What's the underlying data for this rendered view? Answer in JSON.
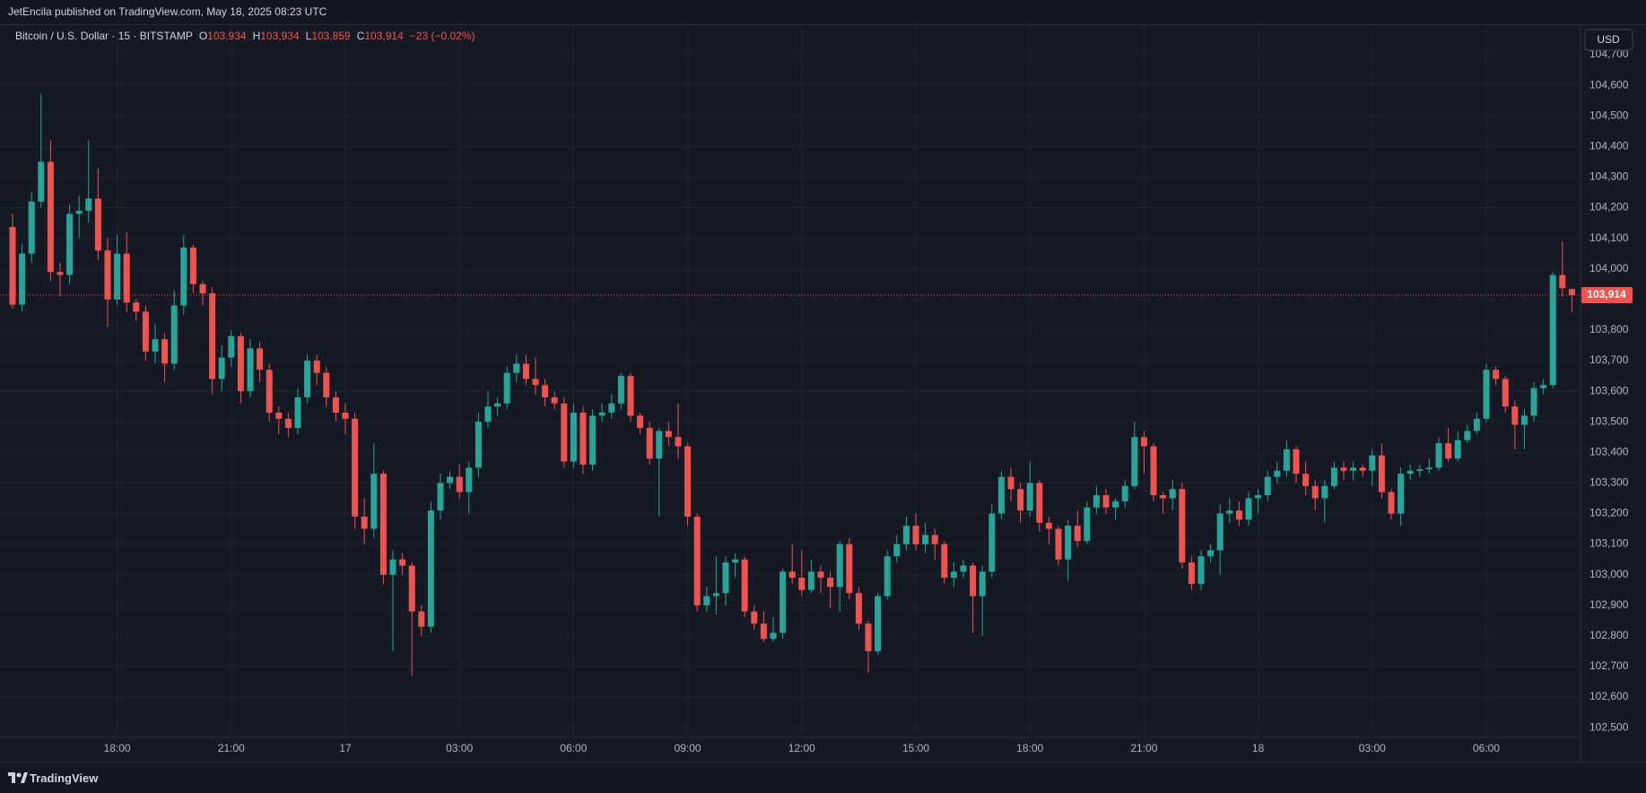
{
  "header": {
    "publisher": "JetEncila published on TradingView.com, May 18, 2025 08:23 UTC"
  },
  "footer": {
    "brand": "TradingView"
  },
  "chart_data": {
    "type": "candlestick",
    "symbol": "Bitcoin / U.S. Dollar · 15 · BITSTAMP",
    "ohlc_legend": [
      {
        "label": "O",
        "text": "103,934"
      },
      {
        "label": "H",
        "text": "103,934"
      },
      {
        "label": "L",
        "text": "103,859"
      },
      {
        "label": "C",
        "text": "103,914"
      }
    ],
    "change": "−23 (−0.02%)",
    "currency": "USD",
    "up_color": "#26a69a",
    "down_color": "#ef5350",
    "grid": true,
    "open": [
      104137,
      103883,
      104050,
      104220,
      104350,
      103990,
      103980,
      104180,
      104190,
      104230,
      104060,
      103900,
      104050,
      103890,
      103860,
      103730,
      103770,
      103690,
      103880,
      104070,
      103950,
      103920,
      103640,
      103710,
      103780,
      103600,
      103740,
      103670,
      103530,
      103510,
      103480,
      103580,
      103700,
      103660,
      103580,
      103530,
      103510,
      103190,
      103150,
      103330,
      103000,
      103050,
      103030,
      102880,
      102830,
      103210,
      103300,
      103320,
      103270,
      103350,
      103500,
      103550,
      103560,
      103660,
      103690,
      103640,
      103620,
      103580,
      103560,
      103370,
      103530,
      103360,
      103520,
      103530,
      103560,
      103650,
      103520,
      103480,
      103380,
      103470,
      103450,
      103420,
      103190,
      102900,
      102930,
      102940,
      103040,
      103050,
      102880,
      102840,
      102790,
      102810,
      103010,
      102990,
      102950,
      103010,
      102990,
      102960,
      103100,
      102940,
      102840,
      102750,
      102930,
      103060,
      103100,
      103160,
      103100,
      103130,
      103100,
      102990,
      103010,
      103030,
      102930,
      103010,
      103200,
      103320,
      103280,
      103210,
      103300,
      103170,
      103150,
      103050,
      103160,
      103110,
      103220,
      103260,
      103220,
      103240,
      103290,
      103450,
      103420,
      103260,
      103250,
      103280,
      103040,
      102970,
      103060,
      103080,
      103200,
      103210,
      103180,
      103250,
      103260,
      103320,
      103340,
      103410,
      103330,
      103290,
      103250,
      103290,
      103350,
      103340,
      103350,
      103340,
      103390,
      103270,
      103200,
      103330,
      103340,
      103345,
      103350,
      103430,
      103380,
      103440,
      103470,
      103510,
      103670,
      103640,
      103550,
      103490,
      103520,
      103610,
      103620,
      103980,
      103934
    ],
    "high": [
      104180,
      104080,
      104250,
      104570,
      104420,
      104020,
      104210,
      104240,
      104420,
      104330,
      104100,
      104110,
      104120,
      103900,
      103880,
      103820,
      103790,
      103930,
      104110,
      104080,
      103960,
      103940,
      103750,
      103800,
      103790,
      103770,
      103760,
      103690,
      103550,
      103530,
      103610,
      103720,
      103720,
      103680,
      103600,
      103560,
      103530,
      103250,
      103430,
      103340,
      103080,
      103070,
      103040,
      102900,
      103240,
      103330,
      103340,
      103360,
      103370,
      103530,
      103600,
      103580,
      103680,
      103720,
      103720,
      103710,
      103640,
      103600,
      103580,
      103560,
      103550,
      103540,
      103560,
      103590,
      103660,
      103660,
      103530,
      103500,
      103480,
      103500,
      103560,
      103430,
      103200,
      102960,
      103060,
      103060,
      103070,
      103060,
      102900,
      102880,
      102860,
      103020,
      103100,
      103080,
      103050,
      103030,
      103010,
      103110,
      103120,
      102960,
      102850,
      102940,
      103080,
      103130,
      103190,
      103200,
      103170,
      103150,
      103110,
      103040,
      103050,
      103040,
      103030,
      103230,
      103340,
      103350,
      103300,
      103370,
      103310,
      103190,
      103160,
      103180,
      103210,
      103240,
      103290,
      103280,
      103250,
      103310,
      103500,
      103470,
      103430,
      103270,
      103310,
      103300,
      103060,
      103080,
      103100,
      103230,
      103250,
      103240,
      103270,
      103280,
      103340,
      103370,
      103440,
      103420,
      103370,
      103310,
      103310,
      103370,
      103370,
      103370,
      103360,
      103410,
      103430,
      103280,
      103350,
      103360,
      103360,
      103380,
      103450,
      103480,
      103470,
      103490,
      103530,
      103690,
      103680,
      103650,
      103570,
      103540,
      103630,
      103640,
      103990,
      104090,
      103934
    ],
    "low": [
      103870,
      103860,
      104020,
      104200,
      103960,
      103910,
      103950,
      104100,
      104150,
      104030,
      103810,
      103880,
      103860,
      103830,
      103700,
      103690,
      103630,
      103670,
      103850,
      103920,
      103880,
      103590,
      103600,
      103680,
      103560,
      103580,
      103630,
      103500,
      103460,
      103450,
      103460,
      103560,
      103620,
      103550,
      103500,
      103460,
      103150,
      103100,
      103120,
      102970,
      102750,
      103000,
      102670,
      102800,
      102810,
      103180,
      103280,
      103250,
      103200,
      103320,
      103480,
      103520,
      103540,
      103630,
      103620,
      103590,
      103550,
      103540,
      103350,
      103350,
      103330,
      103340,
      103500,
      103510,
      103540,
      103500,
      103460,
      103360,
      103190,
      103420,
      103380,
      103160,
      102880,
      102880,
      102870,
      102900,
      102990,
      102860,
      102820,
      102780,
      102780,
      102790,
      102970,
      102930,
      102940,
      102940,
      102890,
      102880,
      102920,
      102820,
      102680,
      102740,
      102920,
      103040,
      103080,
      103080,
      103070,
      103050,
      102970,
      102960,
      102990,
      102810,
      102800,
      102990,
      103180,
      103240,
      103170,
      103190,
      103140,
      103100,
      103030,
      102980,
      103090,
      103100,
      103200,
      103200,
      103180,
      103220,
      103280,
      103330,
      103240,
      103200,
      103210,
      103020,
      102950,
      102950,
      103040,
      103000,
      103170,
      103160,
      103160,
      103200,
      103240,
      103300,
      103320,
      103300,
      103260,
      103210,
      103170,
      103280,
      103310,
      103310,
      103320,
      103290,
      103250,
      103180,
      103160,
      103310,
      103320,
      103330,
      103340,
      103370,
      103370,
      103430,
      103460,
      103500,
      103620,
      103530,
      103410,
      103410,
      103500,
      103590,
      103610,
      103910,
      103859
    ],
    "close": [
      103883,
      104050,
      104220,
      104350,
      103990,
      103980,
      104180,
      104190,
      104230,
      104060,
      103900,
      104050,
      103890,
      103860,
      103730,
      103770,
      103690,
      103880,
      104070,
      103950,
      103920,
      103640,
      103710,
      103780,
      103600,
      103740,
      103670,
      103530,
      103510,
      103480,
      103580,
      103700,
      103660,
      103580,
      103530,
      103510,
      103190,
      103150,
      103330,
      103000,
      103050,
      103030,
      102880,
      102830,
      103210,
      103300,
      103320,
      103270,
      103350,
      103500,
      103550,
      103560,
      103660,
      103690,
      103640,
      103620,
      103580,
      103560,
      103370,
      103530,
      103360,
      103520,
      103530,
      103560,
      103650,
      103520,
      103480,
      103380,
      103470,
      103450,
      103420,
      103190,
      102900,
      102930,
      102940,
      103040,
      103050,
      102880,
      102840,
      102790,
      102810,
      103010,
      102990,
      102950,
      103010,
      102990,
      102960,
      103100,
      102940,
      102840,
      102750,
      102930,
      103060,
      103100,
      103160,
      103100,
      103130,
      103100,
      102990,
      103010,
      103030,
      102930,
      103010,
      103200,
      103320,
      103280,
      103210,
      103300,
      103170,
      103150,
      103050,
      103160,
      103110,
      103220,
      103260,
      103220,
      103240,
      103290,
      103450,
      103420,
      103260,
      103250,
      103280,
      103040,
      102970,
      103060,
      103080,
      103200,
      103210,
      103180,
      103250,
      103260,
      103320,
      103340,
      103410,
      103330,
      103290,
      103250,
      103290,
      103350,
      103340,
      103350,
      103340,
      103390,
      103270,
      103200,
      103330,
      103340,
      103345,
      103350,
      103430,
      103380,
      103440,
      103470,
      103510,
      103670,
      103640,
      103550,
      103490,
      103520,
      103610,
      103620,
      103980,
      103937,
      103914
    ],
    "xticks": [
      {
        "value": 11,
        "label": "18:00"
      },
      {
        "value": 23,
        "label": "21:00"
      },
      {
        "value": 35,
        "label": "17"
      },
      {
        "value": 47,
        "label": "03:00"
      },
      {
        "value": 59,
        "label": "06:00"
      },
      {
        "value": 71,
        "label": "09:00"
      },
      {
        "value": 83,
        "label": "12:00"
      },
      {
        "value": 95,
        "label": "15:00"
      },
      {
        "value": 107,
        "label": "18:00"
      },
      {
        "value": 119,
        "label": "21:00"
      },
      {
        "value": 131,
        "label": "18"
      },
      {
        "value": 143,
        "label": "03:00"
      },
      {
        "value": 155,
        "label": "06:00"
      }
    ],
    "ylim": [
      102474,
      104797
    ],
    "yticks": [
      {
        "value": 102500,
        "label": "102,500"
      },
      {
        "value": 102600,
        "label": "102,600"
      },
      {
        "value": 102700,
        "label": "102,700"
      },
      {
        "value": 102800,
        "label": "102,800"
      },
      {
        "value": 102900,
        "label": "102,900"
      },
      {
        "value": 103000,
        "label": "103,000"
      },
      {
        "value": 103100,
        "label": "103,100"
      },
      {
        "value": 103200,
        "label": "103,200"
      },
      {
        "value": 103300,
        "label": "103,300"
      },
      {
        "value": 103400,
        "label": "103,400"
      },
      {
        "value": 103500,
        "label": "103,500"
      },
      {
        "value": 103600,
        "label": "103,600"
      },
      {
        "value": 103700,
        "label": "103,700"
      },
      {
        "value": 103800,
        "label": "103,800"
      },
      {
        "value": 103900,
        "label": "103,900"
      },
      {
        "value": 104000,
        "label": "104,000"
      },
      {
        "value": 104100,
        "label": "104,100"
      },
      {
        "value": 104200,
        "label": "104,200"
      },
      {
        "value": 104300,
        "label": "104,300"
      },
      {
        "value": 104400,
        "label": "104,400"
      },
      {
        "value": 104500,
        "label": "104,500"
      },
      {
        "value": 104600,
        "label": "104,600"
      },
      {
        "value": 104700,
        "label": "104,700"
      }
    ],
    "last_price": {
      "value": 103914,
      "label": "103,914"
    }
  }
}
